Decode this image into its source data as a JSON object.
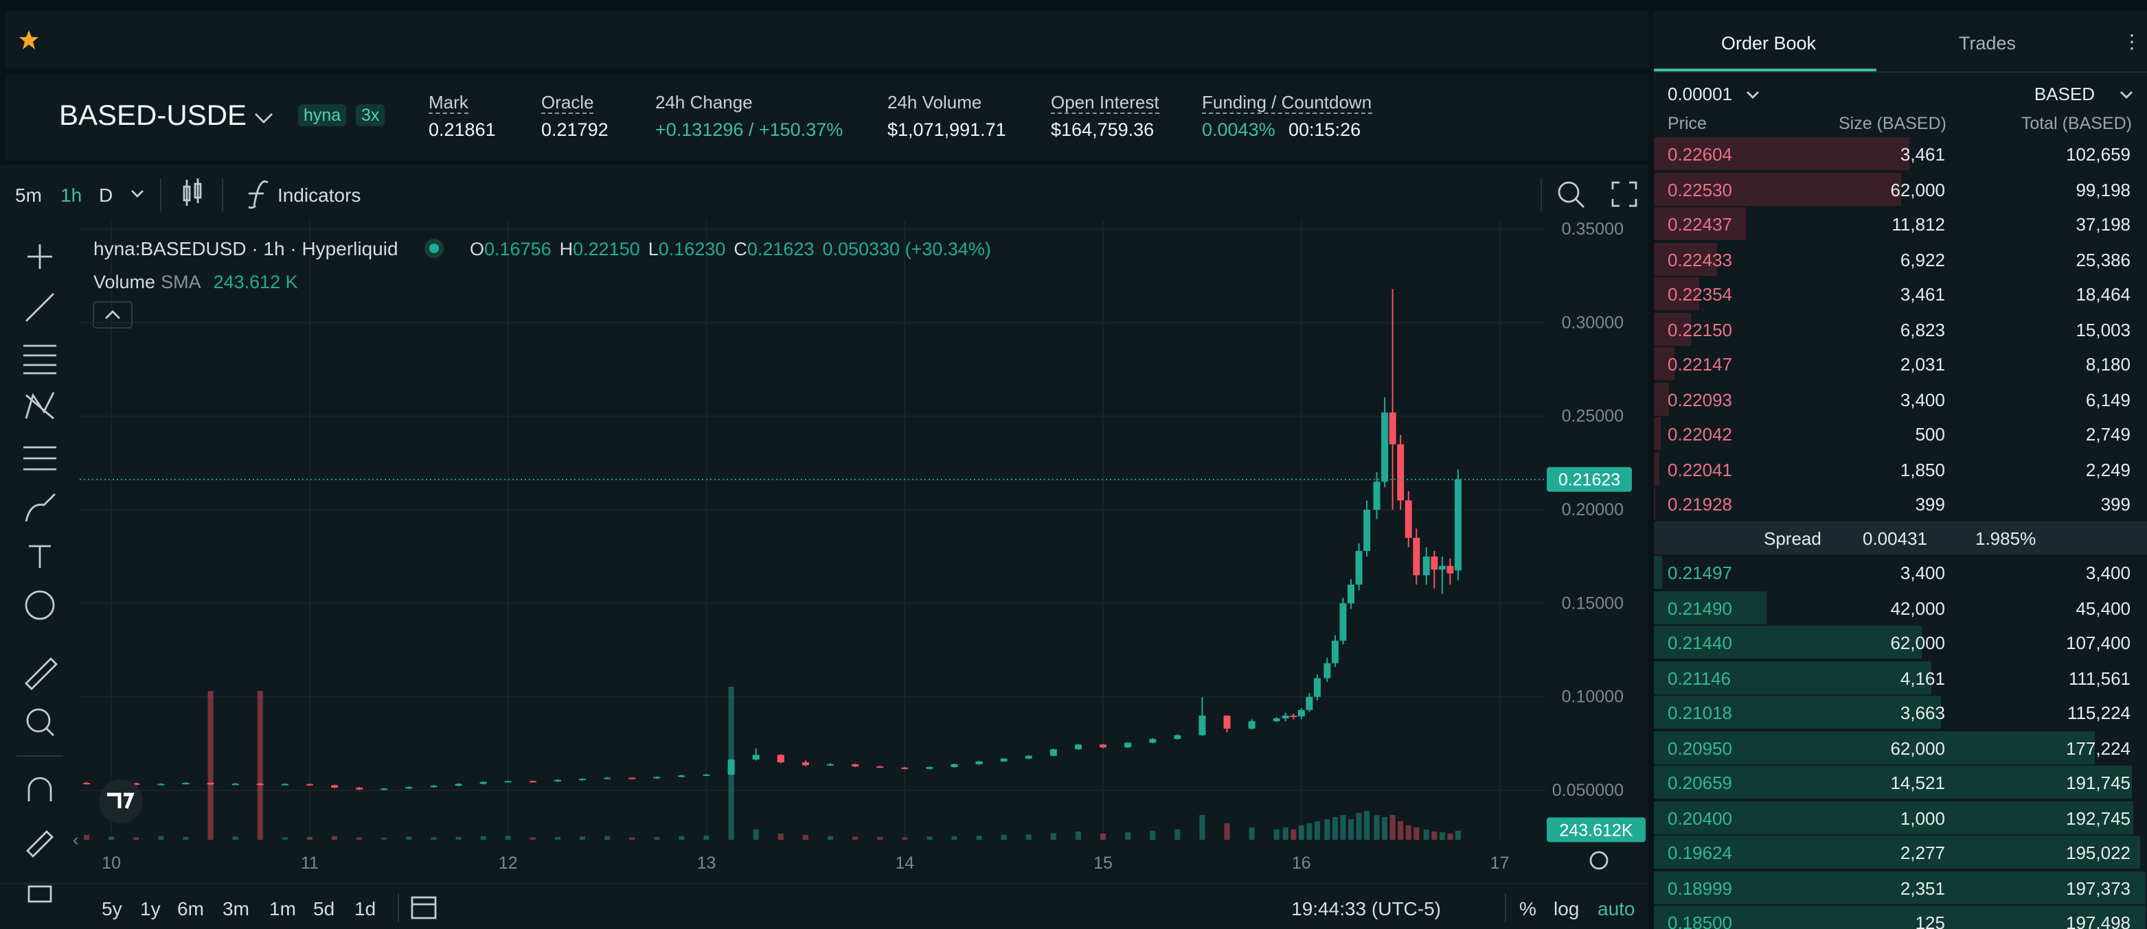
{
  "header": {
    "symbol": "BASED-USDE",
    "tags": [
      "hyna",
      "3x"
    ],
    "stats": [
      {
        "label": "Mark",
        "value": "0.21861",
        "underlined": true
      },
      {
        "label": "Oracle",
        "value": "0.21792",
        "underlined": true
      },
      {
        "label": "24h Change",
        "value": "+0.131296 / +150.37%",
        "underlined": false,
        "color": "#3fbf97"
      },
      {
        "label": "24h Volume",
        "value": "$1,071,991.71",
        "underlined": false
      },
      {
        "label": "Open Interest",
        "value": "$164,759.36",
        "underlined": true
      },
      {
        "label": "Funding / Countdown",
        "value": "0.0043%",
        "extra": "00:15:26",
        "underlined": true,
        "color": "#3fbf97"
      }
    ]
  },
  "toolbar": {
    "intervals": [
      "5m",
      "1h",
      "D"
    ],
    "indicators": "Indicators"
  },
  "chart_data": {
    "type": "candlestick",
    "symbol_line": "hyna:BASEDUSD · 1h · Hyperliquid",
    "ohlc_legend": [
      {
        "label": "O",
        "value": "0.16756"
      },
      {
        "label": "H",
        "value": "0.22150"
      },
      {
        "label": "L",
        "value": "0.16230"
      },
      {
        "label": "C",
        "value": "0.21623"
      }
    ],
    "change": "0.050330 (+30.34%)",
    "volume_legend": {
      "label": "Volume",
      "sma": "SMA",
      "value": "243.612 K"
    },
    "x": [
      9.875,
      10,
      10.125,
      10.25,
      10.375,
      10.5,
      10.625,
      10.75,
      10.875,
      11,
      11.125,
      11.25,
      11.375,
      11.5,
      11.625,
      11.75,
      11.875,
      12,
      12.125,
      12.25,
      12.375,
      12.5,
      12.625,
      12.75,
      12.875,
      13,
      13.125,
      13.25,
      13.375,
      13.5,
      13.625,
      13.75,
      13.875,
      14,
      14.125,
      14.25,
      14.375,
      14.5,
      14.625,
      14.75,
      14.875,
      15,
      15.125,
      15.25,
      15.375,
      15.5,
      15.625,
      15.75,
      15.875,
      15.92,
      15.96,
      16.0,
      16.04,
      16.08,
      16.13,
      16.17,
      16.21,
      16.25,
      16.29,
      16.33,
      16.38,
      16.42,
      16.46,
      16.5,
      16.54,
      16.58,
      16.63,
      16.67,
      16.71,
      16.75,
      16.79
    ],
    "open": [
      0.054,
      0.0535,
      0.0538,
      0.053,
      0.0535,
      0.054,
      0.0532,
      0.0536,
      0.053,
      0.0534,
      0.0528,
      0.0515,
      0.0505,
      0.051,
      0.0518,
      0.0525,
      0.0535,
      0.0545,
      0.055,
      0.0548,
      0.0556,
      0.0562,
      0.0568,
      0.0565,
      0.0572,
      0.058,
      0.0585,
      0.0665,
      0.069,
      0.065,
      0.0635,
      0.064,
      0.0628,
      0.0622,
      0.0615,
      0.0625,
      0.064,
      0.0655,
      0.067,
      0.0685,
      0.072,
      0.0745,
      0.073,
      0.0755,
      0.0775,
      0.0795,
      0.09,
      0.083,
      0.087,
      0.0885,
      0.09,
      0.0895,
      0.093,
      0.1,
      0.11,
      0.118,
      0.13,
      0.15,
      0.16,
      0.178,
      0.2,
      0.215,
      0.252,
      0.235,
      0.205,
      0.185,
      0.165,
      0.175,
      0.168,
      0.17,
      0.16756
    ],
    "high": [
      0.0545,
      0.0542,
      0.0542,
      0.0538,
      0.0544,
      0.0543,
      0.054,
      0.054,
      0.0537,
      0.0536,
      0.053,
      0.0518,
      0.0513,
      0.0521,
      0.0528,
      0.0538,
      0.0548,
      0.0553,
      0.0553,
      0.0559,
      0.0565,
      0.0571,
      0.057,
      0.0575,
      0.0584,
      0.0589,
      0.0668,
      0.0725,
      0.0693,
      0.066,
      0.0645,
      0.0643,
      0.0632,
      0.0626,
      0.0628,
      0.0643,
      0.0658,
      0.0673,
      0.0689,
      0.0724,
      0.0749,
      0.0748,
      0.0758,
      0.078,
      0.08,
      0.1,
      0.09,
      0.088,
      0.0892,
      0.0915,
      0.091,
      0.094,
      0.102,
      0.112,
      0.121,
      0.133,
      0.153,
      0.163,
      0.182,
      0.205,
      0.22,
      0.26,
      0.318,
      0.24,
      0.21,
      0.19,
      0.18,
      0.178,
      0.175,
      0.174,
      0.2215
    ],
    "low": [
      0.0532,
      0.0532,
      0.0527,
      0.0527,
      0.0532,
      0.0529,
      0.053,
      0.0527,
      0.0528,
      0.0525,
      0.0512,
      0.0502,
      0.0501,
      0.0507,
      0.0515,
      0.0522,
      0.0532,
      0.0542,
      0.0545,
      0.0546,
      0.0553,
      0.0559,
      0.0562,
      0.0562,
      0.057,
      0.0577,
      0.0582,
      0.066,
      0.0645,
      0.063,
      0.0632,
      0.0625,
      0.062,
      0.0612,
      0.0612,
      0.0622,
      0.0637,
      0.0652,
      0.0667,
      0.0682,
      0.0717,
      0.0725,
      0.0727,
      0.0752,
      0.0772,
      0.0792,
      0.081,
      0.0825,
      0.0865,
      0.087,
      0.088,
      0.088,
      0.092,
      0.098,
      0.108,
      0.116,
      0.128,
      0.147,
      0.157,
      0.175,
      0.195,
      0.212,
      0.2,
      0.2,
      0.18,
      0.16,
      0.16,
      0.158,
      0.155,
      0.16,
      0.1623
    ],
    "close": [
      0.0535,
      0.0538,
      0.053,
      0.0535,
      0.054,
      0.0532,
      0.0536,
      0.053,
      0.0534,
      0.0528,
      0.0515,
      0.0505,
      0.051,
      0.0518,
      0.0525,
      0.0535,
      0.0545,
      0.055,
      0.0548,
      0.0556,
      0.0562,
      0.0568,
      0.0565,
      0.0572,
      0.058,
      0.0585,
      0.0665,
      0.069,
      0.065,
      0.0635,
      0.064,
      0.0628,
      0.0622,
      0.0615,
      0.0625,
      0.064,
      0.0655,
      0.067,
      0.0685,
      0.072,
      0.0745,
      0.073,
      0.0755,
      0.0775,
      0.0795,
      0.09,
      0.083,
      0.087,
      0.0885,
      0.09,
      0.0895,
      0.093,
      0.1,
      0.11,
      0.118,
      0.13,
      0.15,
      0.16,
      0.178,
      0.2,
      0.215,
      0.252,
      0.235,
      0.205,
      0.185,
      0.165,
      0.175,
      0.168,
      0.17,
      0.166,
      0.21623
    ],
    "volume": [
      120000,
      80000,
      60000,
      90000,
      70000,
      3600000,
      80000,
      3600000,
      60000,
      70000,
      90000,
      60000,
      50000,
      80000,
      60000,
      70000,
      90000,
      100000,
      60000,
      70000,
      80000,
      90000,
      60000,
      70000,
      90000,
      100000,
      3700000,
      250000,
      150000,
      120000,
      90000,
      80000,
      70000,
      60000,
      80000,
      90000,
      100000,
      120000,
      130000,
      160000,
      200000,
      150000,
      180000,
      220000,
      250000,
      600000,
      400000,
      300000,
      250000,
      300000,
      250000,
      350000,
      400000,
      450000,
      500000,
      550000,
      600000,
      500000,
      650000,
      700000,
      600000,
      550000,
      600000,
      450000,
      350000,
      300000,
      250000,
      200000,
      180000,
      150000,
      220000
    ],
    "xlim": [
      9.84,
      17.23
    ],
    "xticks": [
      10,
      11,
      12,
      13,
      14,
      15,
      16,
      17
    ],
    "ylim": [
      0.0236,
      0.3551
    ],
    "yticks": [
      {
        "value": 0.05,
        "label": "0.050000"
      },
      {
        "value": 0.1,
        "label": "0.10000"
      },
      {
        "value": 0.15,
        "label": "0.15000"
      },
      {
        "value": 0.2,
        "label": "0.20000"
      },
      {
        "value": 0.25,
        "label": "0.25000"
      },
      {
        "value": 0.3,
        "label": "0.30000"
      },
      {
        "value": 0.35,
        "label": "0.35000"
      }
    ],
    "vlim": [
      0,
      15000000
    ],
    "up_color": "#22ab94",
    "down_color": "#f7525f",
    "grid": true,
    "last_price": {
      "value": 0.21623,
      "label": "0.21623"
    },
    "volume_sma": {
      "value": 243612,
      "label": "243.612K"
    },
    "time": "19:44:33 (UTC-5)",
    "ranges": [
      "5y",
      "1y",
      "6m",
      "3m",
      "1m",
      "5d",
      "1d"
    ],
    "scale_options": [
      "%",
      "log",
      "auto"
    ]
  },
  "order_book": {
    "tabs": [
      "Order Book",
      "Trades"
    ],
    "tick_size": "0.00001",
    "unit": "BASED",
    "columns": [
      "Price",
      "Size (BASED)",
      "Total (BASED)"
    ],
    "asks": [
      [
        "0.22604",
        "3,461",
        "102,659"
      ],
      [
        "0.22530",
        "62,000",
        "99,198"
      ],
      [
        "0.22437",
        "11,812",
        "37,198"
      ],
      [
        "0.22433",
        "6,922",
        "25,386"
      ],
      [
        "0.22354",
        "3,461",
        "18,464"
      ],
      [
        "0.22150",
        "6,823",
        "15,003"
      ],
      [
        "0.22147",
        "2,031",
        "8,180"
      ],
      [
        "0.22093",
        "3,400",
        "6,149"
      ],
      [
        "0.22042",
        "500",
        "2,749"
      ],
      [
        "0.22041",
        "1,850",
        "2,249"
      ],
      [
        "0.21928",
        "399",
        "399"
      ]
    ],
    "spread": {
      "label": "Spread",
      "value": "0.00431",
      "percent": "1.985%"
    },
    "bids": [
      [
        "0.21497",
        "3,400",
        "3,400"
      ],
      [
        "0.21490",
        "42,000",
        "45,400"
      ],
      [
        "0.21440",
        "62,000",
        "107,400"
      ],
      [
        "0.21146",
        "4,161",
        "111,561"
      ],
      [
        "0.21018",
        "3,663",
        "115,224"
      ],
      [
        "0.20950",
        "62,000",
        "177,224"
      ],
      [
        "0.20659",
        "14,521",
        "191,745"
      ],
      [
        "0.20400",
        "1,000",
        "192,745"
      ],
      [
        "0.19624",
        "2,277",
        "195,022"
      ],
      [
        "0.18999",
        "2,351",
        "197,373"
      ],
      [
        "0.18500",
        "125",
        "197,498"
      ]
    ]
  }
}
